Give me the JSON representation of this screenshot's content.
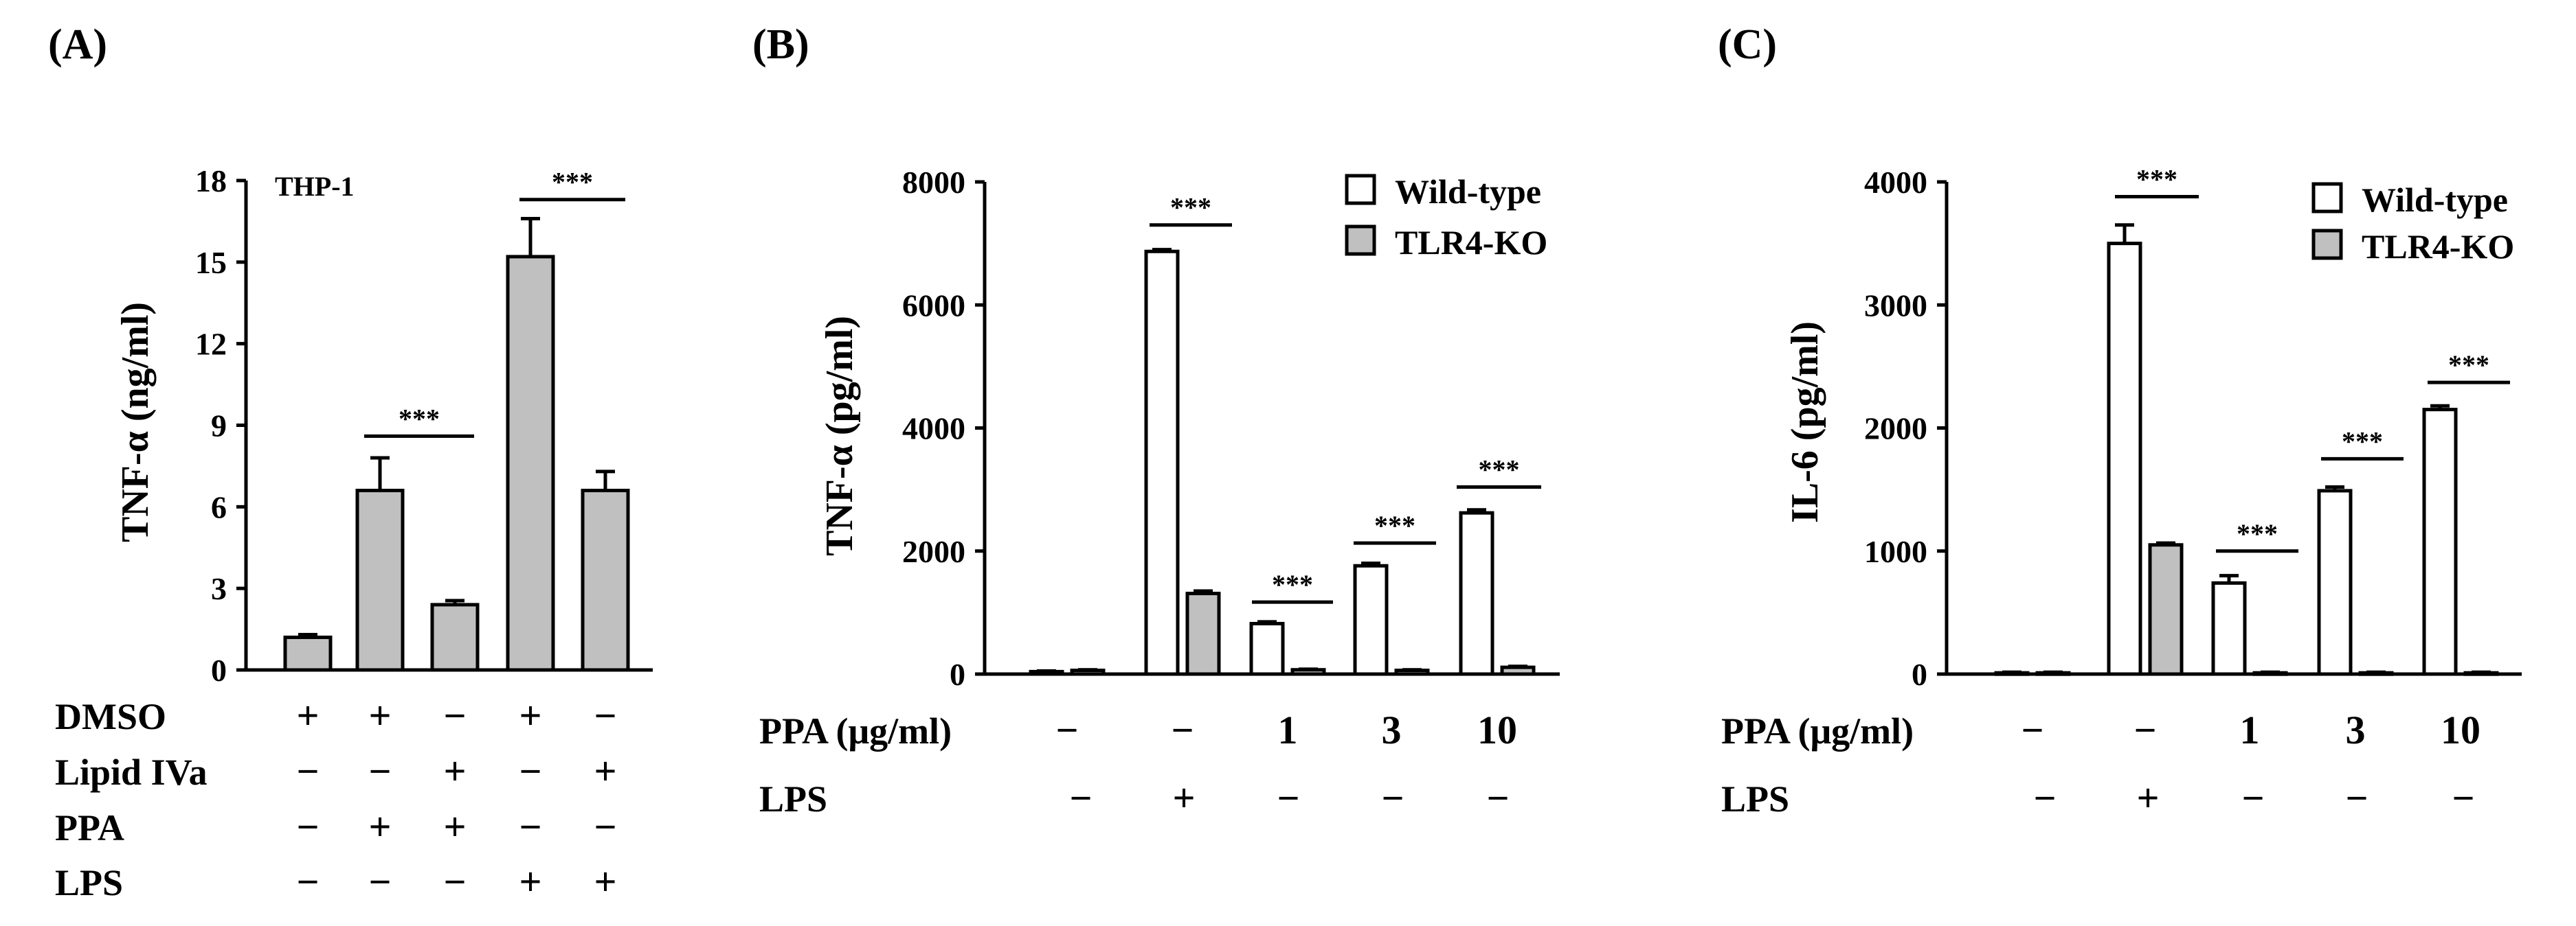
{
  "chart_data": [
    {
      "panel": "(A)",
      "type": "bar",
      "inset_label": "THP-1",
      "ylabel": "TNF-α (ng/ml)",
      "ylim": [
        0,
        18
      ],
      "yticks": [
        "0",
        "3",
        "6",
        "9",
        "12",
        "15",
        "18"
      ],
      "bar_color": "#c0c0c0",
      "series": [
        {
          "name": "TNF-α",
          "values": [
            1.2,
            6.6,
            2.4,
            15.2,
            6.6
          ],
          "errors": [
            0.1,
            1.2,
            0.15,
            1.4,
            0.7
          ]
        }
      ],
      "conditions": [
        {
          "label": "DMSO",
          "signs": [
            "+",
            "+",
            "−",
            "+",
            "−"
          ]
        },
        {
          "label": "Lipid IVa",
          "signs": [
            "−",
            "−",
            "+",
            "−",
            "+"
          ]
        },
        {
          "label": "PPA",
          "signs": [
            "−",
            "+",
            "+",
            "−",
            "−"
          ]
        },
        {
          "label": "LPS",
          "signs": [
            "−",
            "−",
            "−",
            "+",
            "+"
          ]
        }
      ],
      "significance": [
        {
          "text": "***",
          "from": 1,
          "to": 2,
          "y": 8.6
        },
        {
          "text": "***",
          "from": 3,
          "to": 4,
          "y": 17.3
        }
      ]
    },
    {
      "panel": "(B)",
      "type": "bar",
      "ylabel": "TNF-α (pg/ml)",
      "ylim": [
        0,
        8000
      ],
      "yticks": [
        "0",
        "2000",
        "4000",
        "6000",
        "8000"
      ],
      "legend": [
        {
          "name": "Wild-type",
          "color": "#ffffff"
        },
        {
          "name": "TLR4-KO",
          "color": "#c0c0c0"
        }
      ],
      "series": [
        {
          "name": "Wild-type",
          "values": [
            40,
            6870,
            820,
            1760,
            2620
          ],
          "errors": [
            10,
            30,
            30,
            40,
            50
          ]
        },
        {
          "name": "TLR4-KO",
          "values": [
            60,
            1310,
            70,
            60,
            110
          ],
          "errors": [
            10,
            40,
            10,
            10,
            15
          ]
        }
      ],
      "conditions": [
        {
          "label": "PPA (μg/ml)",
          "signs": [
            "−",
            "−",
            "1",
            "3",
            "10"
          ]
        },
        {
          "label": "LPS",
          "signs": [
            "−",
            "+",
            "−",
            "−",
            "−"
          ]
        }
      ],
      "significance": [
        {
          "text": "***",
          "group": 1,
          "y": 7300
        },
        {
          "text": "***",
          "group": 2,
          "y": 1170
        },
        {
          "text": "***",
          "group": 3,
          "y": 2130
        },
        {
          "text": "***",
          "group": 4,
          "y": 3040
        }
      ]
    },
    {
      "panel": "(C)",
      "type": "bar",
      "ylabel": "IL-6 (pg/ml)",
      "ylim": [
        0,
        4000
      ],
      "yticks": [
        "0",
        "1000",
        "2000",
        "3000",
        "4000"
      ],
      "legend": [
        {
          "name": "Wild-type",
          "color": "#ffffff"
        },
        {
          "name": "TLR4-KO",
          "color": "#c0c0c0"
        }
      ],
      "series": [
        {
          "name": "Wild-type",
          "values": [
            10,
            3500,
            740,
            1490,
            2150
          ],
          "errors": [
            5,
            150,
            60,
            30,
            30
          ]
        },
        {
          "name": "TLR4-KO",
          "values": [
            10,
            1050,
            10,
            10,
            10
          ],
          "errors": [
            5,
            15,
            5,
            5,
            5
          ]
        }
      ],
      "conditions": [
        {
          "label": "PPA (μg/ml)",
          "signs": [
            "−",
            "−",
            "1",
            "3",
            "10"
          ]
        },
        {
          "label": "LPS",
          "signs": [
            "−",
            "+",
            "−",
            "−",
            "−"
          ]
        }
      ],
      "significance": [
        {
          "text": "***",
          "group": 1,
          "y": 3880
        },
        {
          "text": "***",
          "group": 2,
          "y": 1000
        },
        {
          "text": "***",
          "group": 3,
          "y": 1750
        },
        {
          "text": "***",
          "group": 4,
          "y": 2370
        }
      ]
    }
  ]
}
